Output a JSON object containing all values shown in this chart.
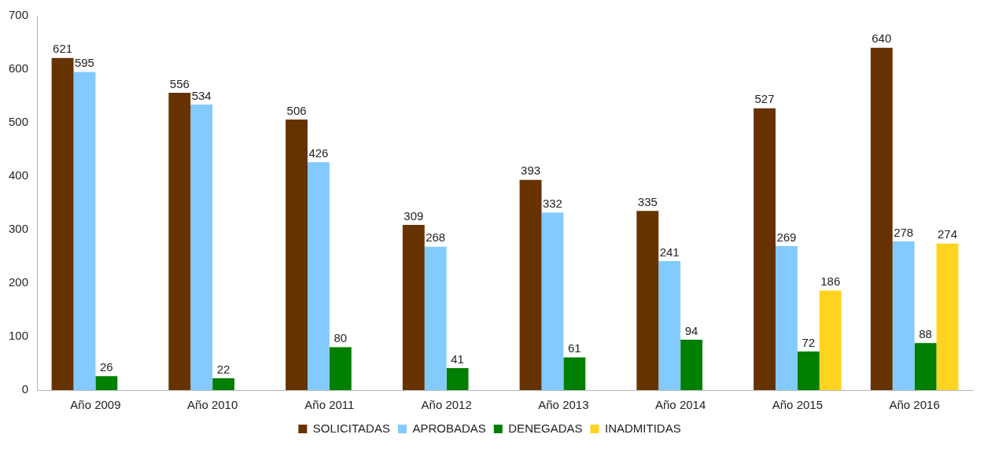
{
  "chart_data": {
    "type": "bar",
    "categories": [
      "Año 2009",
      "Año 2010",
      "Año 2011",
      "Año 2012",
      "Año 2013",
      "Año 2014",
      "Año 2015",
      "Año 2016"
    ],
    "series": [
      {
        "name": "SOLICITADAS",
        "color": "#663300",
        "values": [
          621,
          556,
          506,
          309,
          393,
          335,
          527,
          640
        ]
      },
      {
        "name": "APROBADAS",
        "color": "#83caff",
        "values": [
          595,
          534,
          426,
          268,
          332,
          241,
          269,
          278
        ]
      },
      {
        "name": "DENEGADAS",
        "color": "#007f00",
        "values": [
          26,
          22,
          80,
          41,
          61,
          94,
          72,
          88
        ]
      },
      {
        "name": "INADMITIDAS",
        "color": "#ffd320",
        "values": [
          null,
          null,
          null,
          null,
          null,
          null,
          186,
          274
        ]
      }
    ],
    "ylim": [
      0,
      700
    ],
    "yticks": [
      0,
      100,
      200,
      300,
      400,
      500,
      600,
      700
    ],
    "grid": false,
    "legend": "bottom",
    "data_labels": true
  }
}
